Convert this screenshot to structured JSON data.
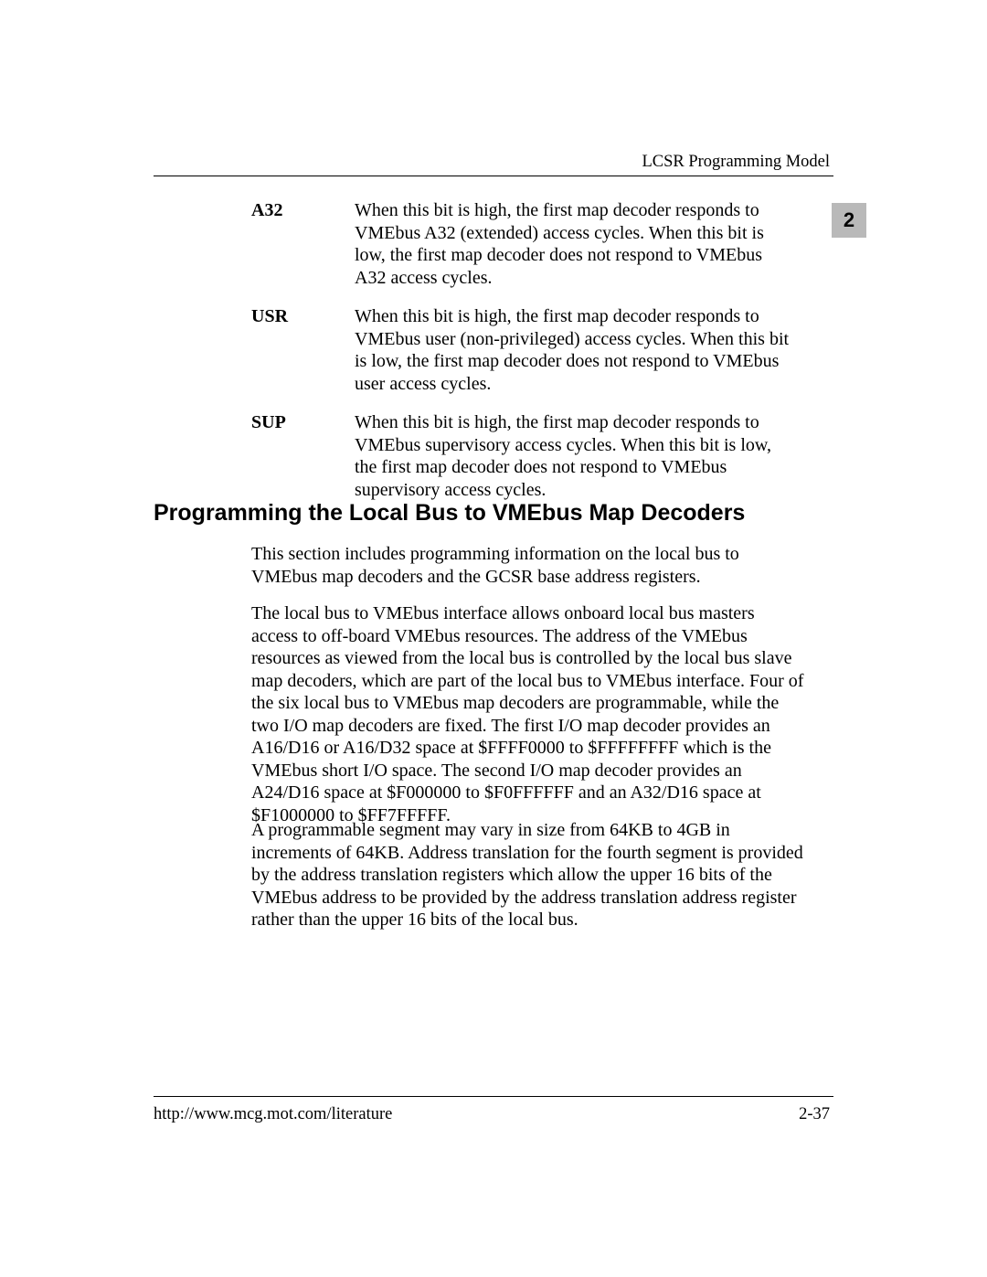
{
  "header": {
    "running_title": "LCSR Programming Model",
    "chapter_tab": "2"
  },
  "definitions": [
    {
      "term": "A32",
      "body": "When this bit is high, the first map decoder responds to VMEbus A32 (extended) access cycles. When this bit is low, the first map decoder does not respond to VMEbus A32 access cycles."
    },
    {
      "term": "USR",
      "body": "When this bit is high, the first map decoder responds to VMEbus user (non-privileged) access cycles. When this bit is low, the first map decoder does not respond to VMEbus user access cycles."
    },
    {
      "term": "SUP",
      "body": "When this bit is high, the first map decoder responds to VMEbus supervisory access cycles. When this bit is low, the first map decoder does not respond to VMEbus supervisory access cycles."
    }
  ],
  "section": {
    "heading": "Programming the Local Bus to VMEbus Map Decoders",
    "paragraphs": [
      "This section includes programming information on the local bus to VMEbus map decoders and the GCSR base address registers.",
      "The local bus to VMEbus interface allows onboard local bus masters access to off-board VMEbus resources. The address of the VMEbus resources as viewed from the local bus is controlled by the local bus slave map decoders, which are part of the local bus to VMEbus interface. Four of the six local bus to VMEbus map decoders are programmable, while the two I/O map decoders are fixed. The first I/O map decoder provides an A16/D16 or A16/D32 space at $FFFF0000 to $FFFFFFFF which is the VMEbus short I/O space. The second I/O map decoder provides an A24/D16 space at $F000000 to $F0FFFFFF and an A32/D16 space at $F1000000 to $FF7FFFFF.",
      "A programmable segment may vary in size from 64KB to 4GB in increments of 64KB. Address translation for the fourth segment is provided by the address translation registers which allow the upper 16 bits of the VMEbus address to be provided by the address translation address register rather than the upper 16 bits of the local bus."
    ]
  },
  "footer": {
    "url": "http://www.mcg.mot.com/literature",
    "page_number": "2-37"
  }
}
